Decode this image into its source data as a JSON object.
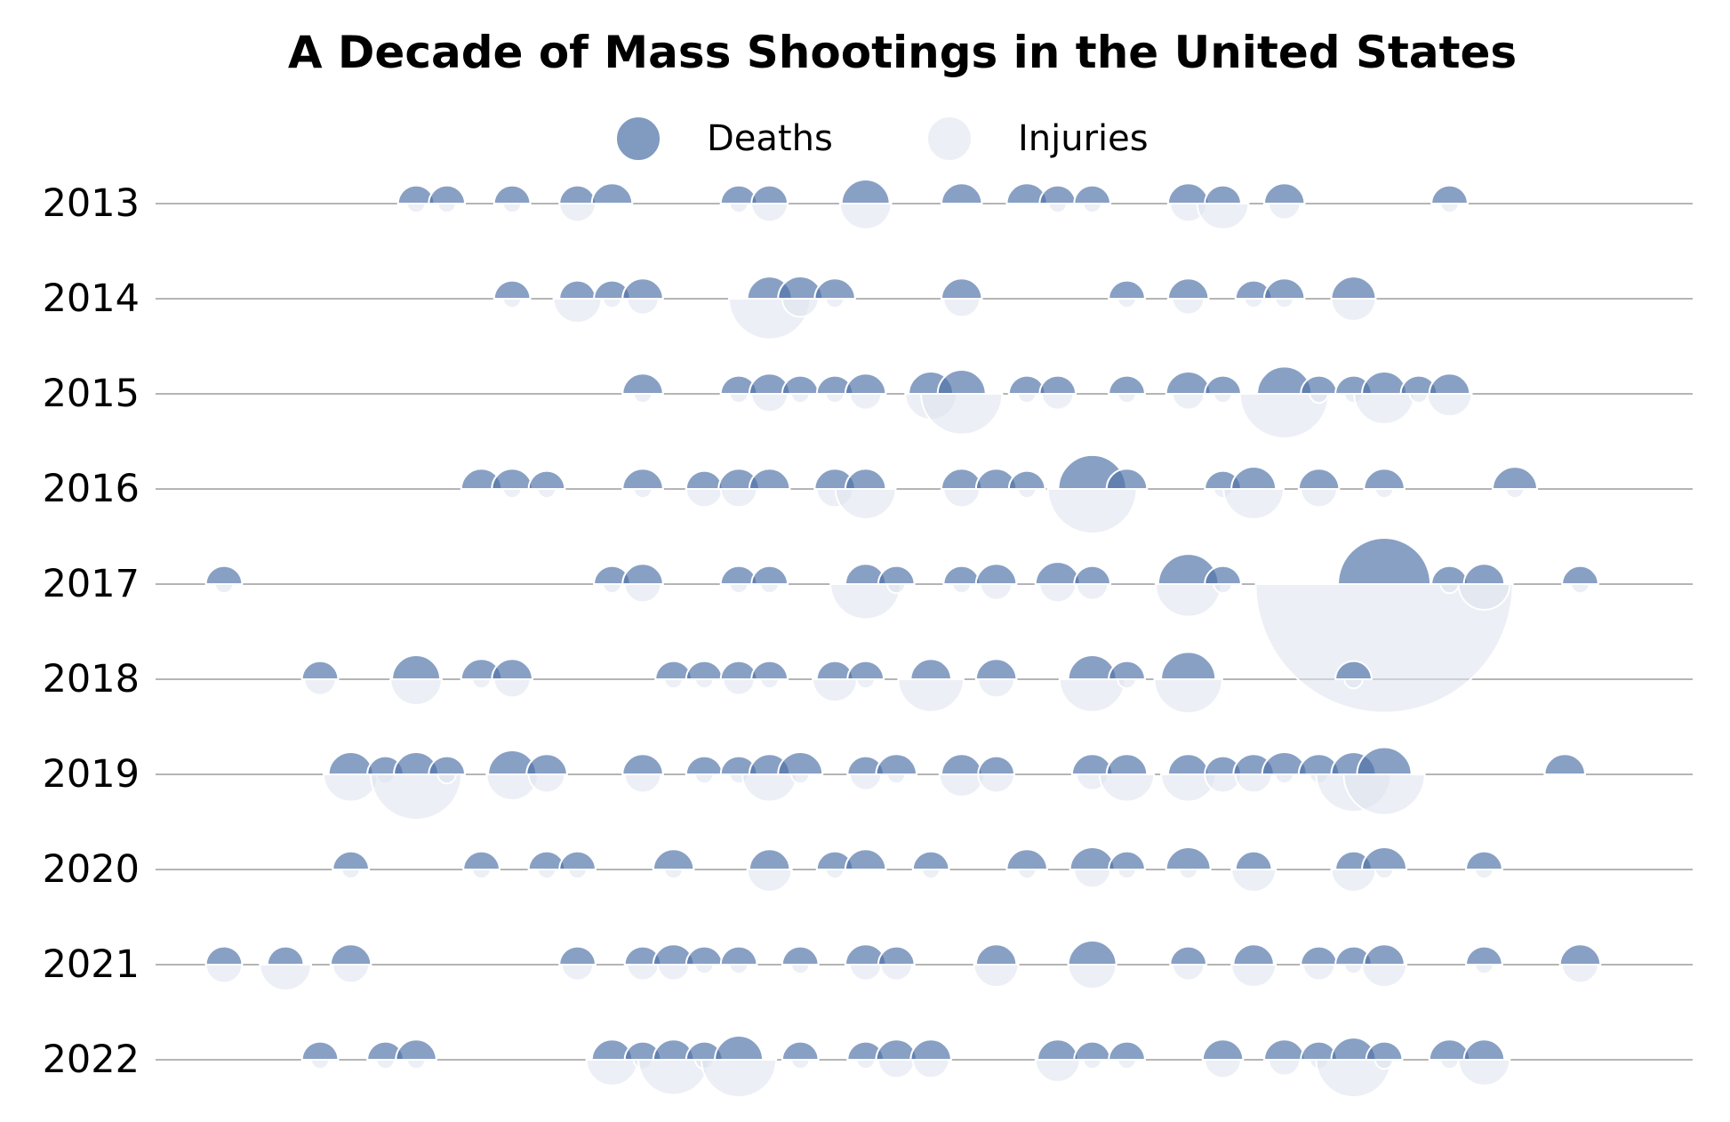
{
  "chart_data": {
    "type": "scatter",
    "title": "A Decade of Mass Shootings in the United States",
    "xlabel": "",
    "ylabel": "",
    "y_categories": [
      "2013",
      "2014",
      "2015",
      "2016",
      "2017",
      "2018",
      "2019",
      "2020",
      "2021",
      "2022"
    ],
    "x_domain": [
      1,
      365
    ],
    "grid": false,
    "legend_position": "top-center",
    "legend": [
      {
        "name": "Deaths",
        "color": "#4f73a8"
      },
      {
        "name": "Injuries",
        "color": "#dde2ec"
      }
    ],
    "colors": {
      "deaths": "#4f73a8",
      "injuries": "#dde2ec",
      "baseline": "#b5b5b5"
    },
    "series": [
      {
        "name": "Deaths",
        "marker": "upper-semicircle",
        "size_metric": "deaths"
      },
      {
        "name": "Injuries",
        "marker": "lower-semicircle",
        "size_metric": "injuries"
      }
    ],
    "points": [
      {
        "year": "2013",
        "events": [
          [
            51,
            4,
            1
          ],
          [
            59,
            4,
            1
          ],
          [
            76,
            4,
            1
          ],
          [
            93,
            4,
            4
          ],
          [
            102,
            5,
            0
          ],
          [
            135,
            4,
            1
          ],
          [
            143,
            4,
            4
          ],
          [
            168,
            7,
            8
          ],
          [
            193,
            5,
            0
          ],
          [
            210,
            5,
            0
          ],
          [
            218,
            4,
            1
          ],
          [
            227,
            4,
            1
          ],
          [
            252,
            5,
            4
          ],
          [
            261,
            4,
            8
          ],
          [
            277,
            5,
            3
          ],
          [
            320,
            4,
            1
          ]
        ]
      },
      {
        "year": "2014",
        "events": [
          [
            76,
            4,
            1
          ],
          [
            93,
            4,
            7
          ],
          [
            102,
            4,
            1
          ],
          [
            110,
            5,
            3
          ],
          [
            143,
            6,
            20
          ],
          [
            151,
            6,
            4
          ],
          [
            160,
            5,
            1
          ],
          [
            193,
            5,
            4
          ],
          [
            236,
            4,
            1
          ],
          [
            252,
            5,
            3
          ],
          [
            269,
            4,
            1
          ],
          [
            277,
            5,
            1
          ],
          [
            295,
            6,
            6
          ]
        ]
      },
      {
        "year": "2015",
        "events": [
          [
            110,
            5,
            1
          ],
          [
            135,
            4,
            1
          ],
          [
            143,
            5,
            4
          ],
          [
            151,
            4,
            1
          ],
          [
            160,
            4,
            1
          ],
          [
            168,
            5,
            3
          ],
          [
            185,
            6,
            8
          ],
          [
            193,
            7,
            20
          ],
          [
            210,
            4,
            1
          ],
          [
            218,
            4,
            3
          ],
          [
            236,
            4,
            1
          ],
          [
            252,
            6,
            3
          ],
          [
            261,
            4,
            1
          ],
          [
            277,
            9,
            24
          ],
          [
            286,
            4,
            1
          ],
          [
            295,
            4,
            1
          ],
          [
            303,
            6,
            11
          ],
          [
            312,
            4,
            1
          ],
          [
            320,
            5,
            6
          ]
        ]
      },
      {
        "year": "2016",
        "events": [
          [
            68,
            5,
            0
          ],
          [
            76,
            5,
            1
          ],
          [
            85,
            4,
            1
          ],
          [
            110,
            5,
            1
          ],
          [
            126,
            4,
            4
          ],
          [
            135,
            5,
            4
          ],
          [
            143,
            5,
            0
          ],
          [
            160,
            5,
            4
          ],
          [
            168,
            5,
            11
          ],
          [
            193,
            5,
            4
          ],
          [
            202,
            5,
            0
          ],
          [
            210,
            4,
            1
          ],
          [
            227,
            14,
            24
          ],
          [
            236,
            5,
            0
          ],
          [
            261,
            4,
            1
          ],
          [
            269,
            6,
            11
          ],
          [
            286,
            5,
            4
          ],
          [
            303,
            5,
            1
          ],
          [
            337,
            6,
            1
          ]
        ]
      },
      {
        "year": "2017",
        "events": [
          [
            1,
            4,
            1
          ],
          [
            102,
            4,
            1
          ],
          [
            110,
            5,
            4
          ],
          [
            135,
            4,
            1
          ],
          [
            143,
            4,
            1
          ],
          [
            168,
            5,
            15
          ],
          [
            176,
            4,
            1
          ],
          [
            193,
            4,
            1
          ],
          [
            202,
            5,
            3
          ],
          [
            218,
            6,
            4
          ],
          [
            227,
            4,
            3
          ],
          [
            252,
            11,
            13
          ],
          [
            261,
            4,
            1
          ],
          [
            303,
            26,
            201
          ],
          [
            320,
            4,
            1
          ],
          [
            329,
            5,
            8
          ],
          [
            354,
            4,
            1
          ]
        ]
      },
      {
        "year": "2018",
        "events": [
          [
            26,
            4,
            3
          ],
          [
            51,
            7,
            8
          ],
          [
            68,
            5,
            1
          ],
          [
            76,
            5,
            4
          ],
          [
            118,
            4,
            1
          ],
          [
            126,
            4,
            1
          ],
          [
            135,
            4,
            3
          ],
          [
            143,
            4,
            1
          ],
          [
            160,
            4,
            6
          ],
          [
            168,
            4,
            1
          ],
          [
            185,
            5,
            13
          ],
          [
            202,
            5,
            4
          ],
          [
            227,
            7,
            13
          ],
          [
            236,
            4,
            1
          ],
          [
            252,
            9,
            14
          ],
          [
            295,
            4,
            1
          ]
        ]
      },
      {
        "year": "2019",
        "events": [
          [
            34,
            6,
            9
          ],
          [
            43,
            4,
            1
          ],
          [
            51,
            6,
            25
          ],
          [
            59,
            4,
            1
          ],
          [
            76,
            7,
            8
          ],
          [
            85,
            5,
            4
          ],
          [
            110,
            5,
            4
          ],
          [
            126,
            4,
            1
          ],
          [
            135,
            4,
            1
          ],
          [
            143,
            5,
            9
          ],
          [
            151,
            6,
            1
          ],
          [
            168,
            4,
            3
          ],
          [
            176,
            5,
            1
          ],
          [
            193,
            5,
            6
          ],
          [
            202,
            4,
            4
          ],
          [
            227,
            5,
            3
          ],
          [
            236,
            5,
            9
          ],
          [
            252,
            5,
            9
          ],
          [
            261,
            4,
            4
          ],
          [
            269,
            5,
            4
          ],
          [
            277,
            6,
            1
          ],
          [
            286,
            5,
            1
          ],
          [
            295,
            6,
            17
          ],
          [
            303,
            9,
            20
          ],
          [
            350,
            5,
            0
          ]
        ]
      },
      {
        "year": "2020",
        "events": [
          [
            34,
            4,
            1
          ],
          [
            68,
            4,
            1
          ],
          [
            85,
            4,
            1
          ],
          [
            93,
            4,
            1
          ],
          [
            118,
            5,
            1
          ],
          [
            143,
            5,
            6
          ],
          [
            160,
            4,
            1
          ],
          [
            168,
            5,
            0
          ],
          [
            185,
            4,
            1
          ],
          [
            210,
            5,
            1
          ],
          [
            227,
            6,
            4
          ],
          [
            236,
            4,
            1
          ],
          [
            252,
            6,
            1
          ],
          [
            269,
            4,
            6
          ],
          [
            295,
            4,
            6
          ],
          [
            303,
            6,
            1
          ],
          [
            329,
            4,
            1
          ]
        ]
      },
      {
        "year": "2021",
        "events": [
          [
            1,
            4,
            4
          ],
          [
            17,
            4,
            8
          ],
          [
            34,
            5,
            4
          ],
          [
            93,
            4,
            3
          ],
          [
            110,
            4,
            3
          ],
          [
            118,
            5,
            3
          ],
          [
            126,
            4,
            1
          ],
          [
            135,
            4,
            1
          ],
          [
            151,
            4,
            1
          ],
          [
            168,
            5,
            3
          ],
          [
            176,
            4,
            3
          ],
          [
            202,
            5,
            6
          ],
          [
            227,
            7,
            7
          ],
          [
            252,
            4,
            3
          ],
          [
            269,
            5,
            6
          ],
          [
            286,
            4,
            3
          ],
          [
            295,
            4,
            1
          ],
          [
            303,
            5,
            6
          ],
          [
            329,
            4,
            1
          ],
          [
            354,
            5,
            4
          ]
        ]
      },
      {
        "year": "2022",
        "events": [
          [
            26,
            4,
            1
          ],
          [
            43,
            4,
            1
          ],
          [
            51,
            5,
            1
          ],
          [
            102,
            5,
            8
          ],
          [
            110,
            4,
            1
          ],
          [
            118,
            5,
            15
          ],
          [
            126,
            4,
            1
          ],
          [
            135,
            7,
            17
          ],
          [
            151,
            4,
            1
          ],
          [
            168,
            4,
            1
          ],
          [
            176,
            5,
            4
          ],
          [
            185,
            5,
            4
          ],
          [
            218,
            5,
            6
          ],
          [
            227,
            4,
            1
          ],
          [
            236,
            4,
            1
          ],
          [
            261,
            5,
            4
          ],
          [
            277,
            5,
            3
          ],
          [
            286,
            4,
            1
          ],
          [
            295,
            6,
            17
          ],
          [
            303,
            4,
            1
          ],
          [
            320,
            5,
            1
          ],
          [
            329,
            5,
            8
          ]
        ]
      }
    ]
  }
}
